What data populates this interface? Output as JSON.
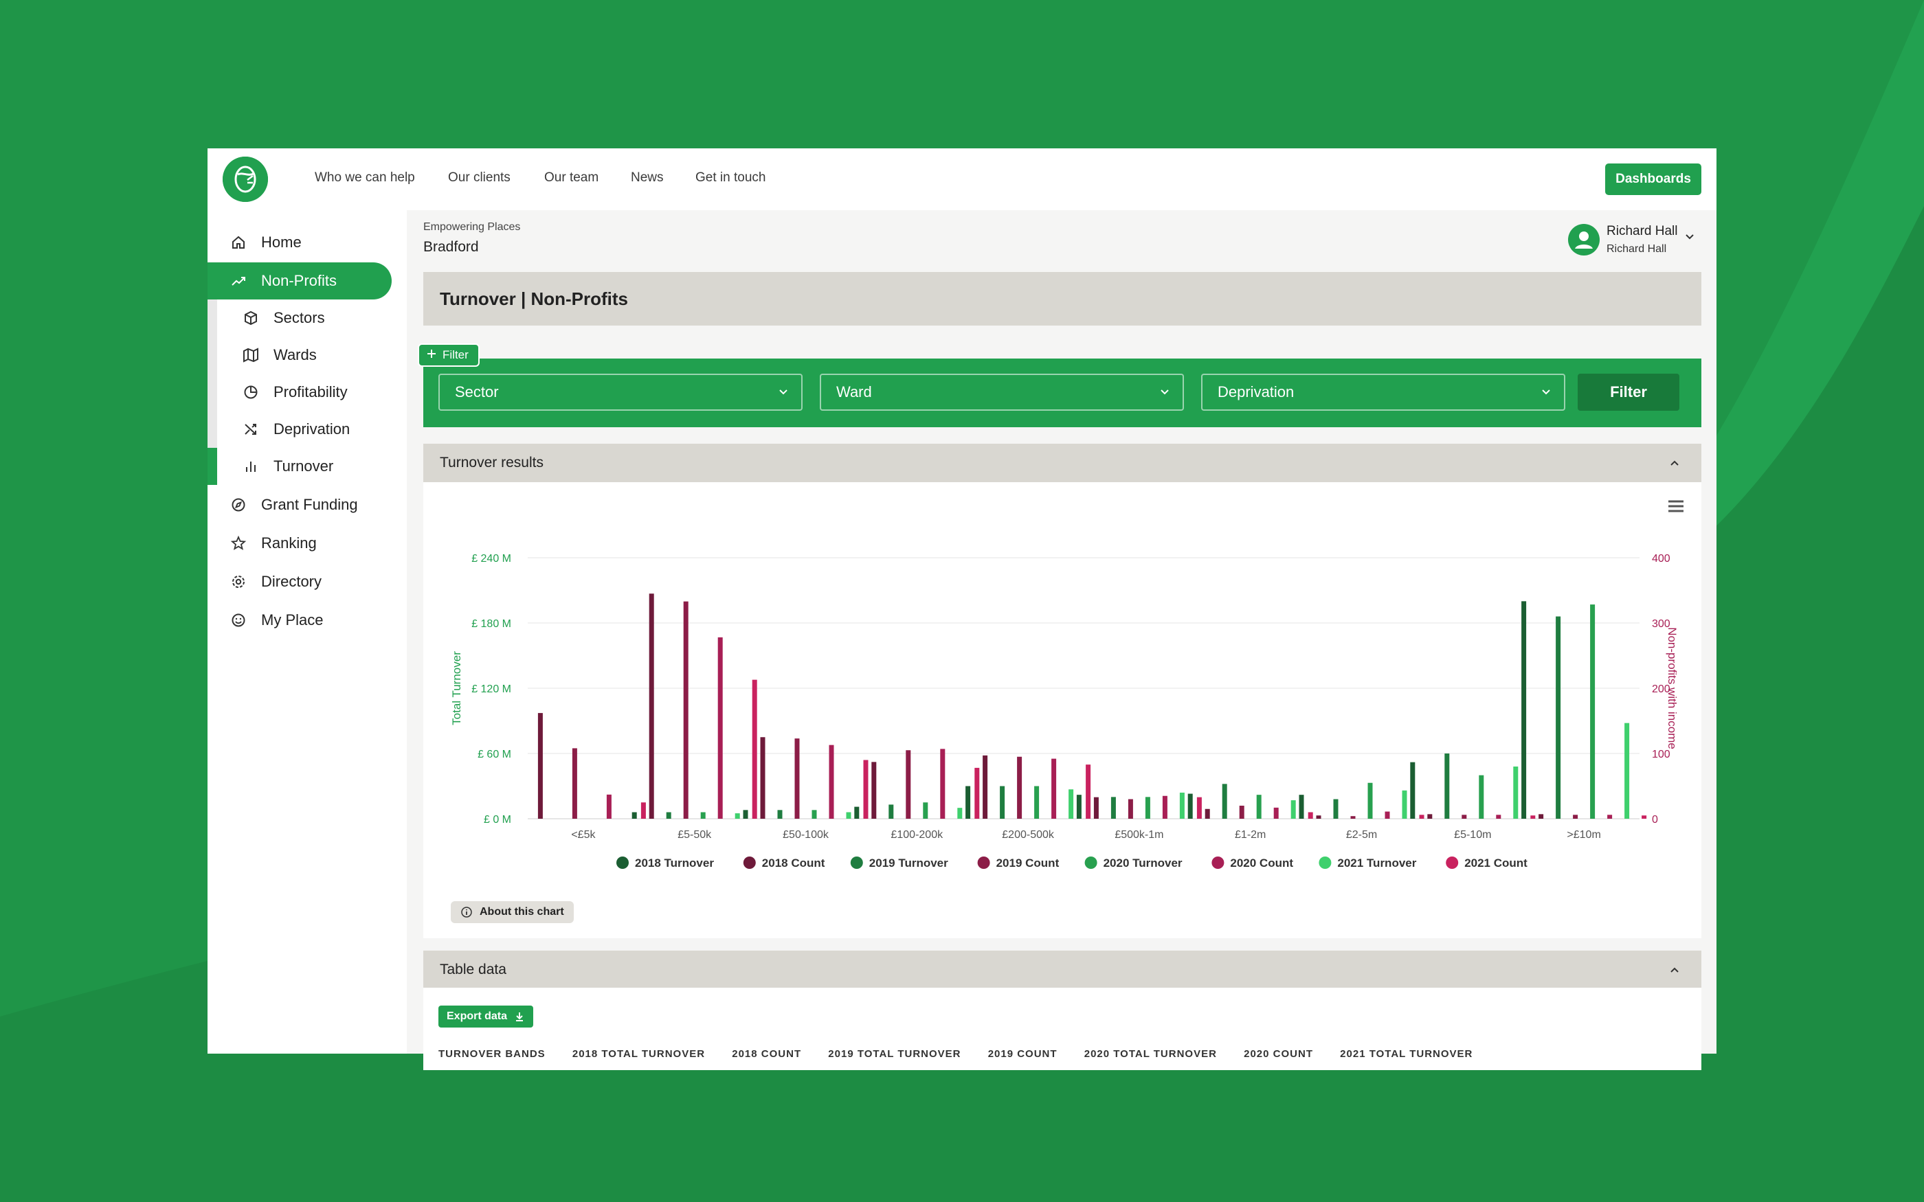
{
  "colors": {
    "brand_green": "#21a04f",
    "background_green": "#1f9548",
    "dark_green_button": "#187a3a",
    "section_grey": "#d9d7d1"
  },
  "topnav": {
    "logo_icon": "brand-logo",
    "links": [
      "Who we can help",
      "Our clients",
      "Our team",
      "News",
      "Get in touch"
    ],
    "dashboards_label": "Dashboards"
  },
  "sidebar": {
    "items": [
      {
        "label": "Home",
        "icon": "home-icon"
      },
      {
        "label": "Non-Profits",
        "icon": "trend-icon",
        "active": true
      },
      {
        "label": "Sectors",
        "icon": "cube-icon"
      },
      {
        "label": "Wards",
        "icon": "map-icon"
      },
      {
        "label": "Profitability",
        "icon": "pie-icon"
      },
      {
        "label": "Deprivation",
        "icon": "shuffle-icon"
      },
      {
        "label": "Turnover",
        "icon": "bar-chart-icon",
        "active": true
      },
      {
        "label": "Grant Funding",
        "icon": "compass-icon"
      },
      {
        "label": "Ranking",
        "icon": "star-icon"
      },
      {
        "label": "Directory",
        "icon": "gear-icon"
      },
      {
        "label": "My Place",
        "icon": "smile-icon"
      }
    ]
  },
  "header": {
    "crumb_small": "Empowering Places",
    "crumb_big": "Bradford",
    "user_name": "Richard Hall",
    "user_sub": "Richard Hall"
  },
  "page": {
    "title": "Turnover | Non-Profits",
    "filter_tag": "Filter",
    "selects": [
      "Sector",
      "Ward",
      "Deprivation"
    ],
    "filter_button": "Filter",
    "results_title": "Turnover results",
    "about_chart": "About this chart",
    "table_title": "Table data",
    "export_label": "Export data",
    "table_columns": [
      "TURNOVER BANDS",
      "2018 TOTAL TURNOVER",
      "2018 COUNT",
      "2019 TOTAL TURNOVER",
      "2019 COUNT",
      "2020 TOTAL TURNOVER",
      "2020 COUNT",
      "2021 TOTAL TURNOVER"
    ]
  },
  "chart_data": {
    "type": "bar",
    "categories": [
      "<£5k",
      "£5-50k",
      "£50-100k",
      "£100-200k",
      "£200-500k",
      "£500k-1m",
      "£1-2m",
      "£2-5m",
      "£5-10m",
      ">£10m"
    ],
    "ylabel": "Total Turnover",
    "y2label": "Non-profits with income",
    "ylim": [
      0,
      240
    ],
    "y2lim": [
      0,
      400
    ],
    "y_ticks": [
      "£ 0 M",
      "£ 60 M",
      "£ 120 M",
      "£ 180 M",
      "£ 240 M"
    ],
    "y2_ticks": [
      "0",
      "100",
      "200",
      "300",
      "400"
    ],
    "series": [
      {
        "name": "2018 Turnover",
        "axis": "left",
        "color": "#1b5e32",
        "values": [
          0,
          6,
          8,
          11,
          30,
          22,
          23,
          22,
          52,
          200
        ]
      },
      {
        "name": "2018 Count",
        "axis": "right",
        "color": "#6e1a3a",
        "values": [
          162,
          345,
          125,
          87,
          97,
          33,
          15,
          5,
          7,
          7
        ]
      },
      {
        "name": "2019 Turnover",
        "axis": "left",
        "color": "#1f7d40",
        "values": [
          0,
          6,
          8,
          13,
          30,
          20,
          32,
          18,
          60,
          186
        ]
      },
      {
        "name": "2019 Count",
        "axis": "right",
        "color": "#8c1d47",
        "values": [
          108,
          333,
          123,
          105,
          95,
          30,
          20,
          4,
          6,
          6
        ]
      },
      {
        "name": "2020 Turnover",
        "axis": "left",
        "color": "#28a04f",
        "values": [
          0,
          6,
          8,
          15,
          30,
          20,
          22,
          33,
          40,
          197
        ]
      },
      {
        "name": "2020 Count",
        "axis": "right",
        "color": "#a81f55",
        "values": [
          37,
          278,
          113,
          107,
          92,
          35,
          17,
          11,
          6,
          6
        ]
      },
      {
        "name": "2021 Turnover",
        "axis": "left",
        "color": "#3fd06d",
        "values": [
          0,
          5,
          6,
          10,
          27,
          24,
          17,
          26,
          48,
          88
        ]
      },
      {
        "name": "2021 Count",
        "axis": "right",
        "color": "#c9225f",
        "values": [
          25,
          213,
          90,
          78,
          83,
          33,
          10,
          6,
          5,
          5
        ]
      }
    ],
    "legend_position": "bottom",
    "grid": true
  }
}
